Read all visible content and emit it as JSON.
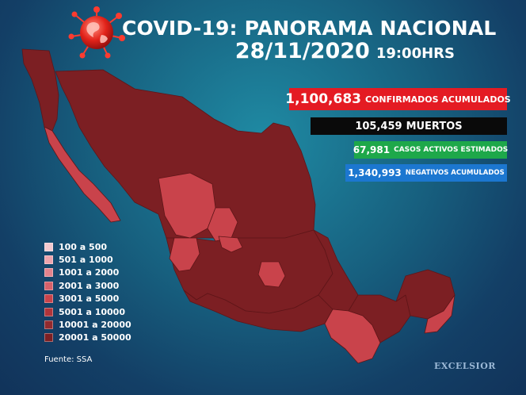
{
  "header": {
    "title": "COVID-19: PANORAMA NACIONAL",
    "date": "28/11/2020",
    "time": "19:00HRS"
  },
  "stats": {
    "confirmed": {
      "value": "1,100,683",
      "label": "CONFIRMADOS ACUMULADOS",
      "color": "#e41b23"
    },
    "deaths": {
      "value": "105,459",
      "label": "MUERTOS",
      "color": "#0a0a0a"
    },
    "active": {
      "value": "67,981",
      "label": "CASOS ACTIVOS ESTIMADOS",
      "color": "#1ea84a"
    },
    "negative": {
      "value": "1,340,993",
      "label": "NEGATIVOS ACUMULADOS",
      "color": "#1c77d0"
    }
  },
  "legend": [
    {
      "label": "100 a 500",
      "color": "#f3c9cf"
    },
    {
      "label": "501 a 1000",
      "color": "#eea4ad"
    },
    {
      "label": "1001 a 2000",
      "color": "#e3838d"
    },
    {
      "label": "2001 a 3000",
      "color": "#d6616a"
    },
    {
      "label": "3001 a 5000",
      "color": "#c9434b"
    },
    {
      "label": "5001 a 10000",
      "color": "#b0343a"
    },
    {
      "label": "10001 a 20000",
      "color": "#922a2e"
    },
    {
      "label": "20001 a 50000",
      "color": "#7c1f23"
    }
  ],
  "footer": {
    "source": "Fuente: SSA",
    "brand": "EXCELSIOR"
  },
  "map_colors": {
    "dark": "#7c1f23",
    "mid": "#922a2e",
    "red": "#b0343a",
    "bright": "#c9434b",
    "light": "#d6616a"
  }
}
